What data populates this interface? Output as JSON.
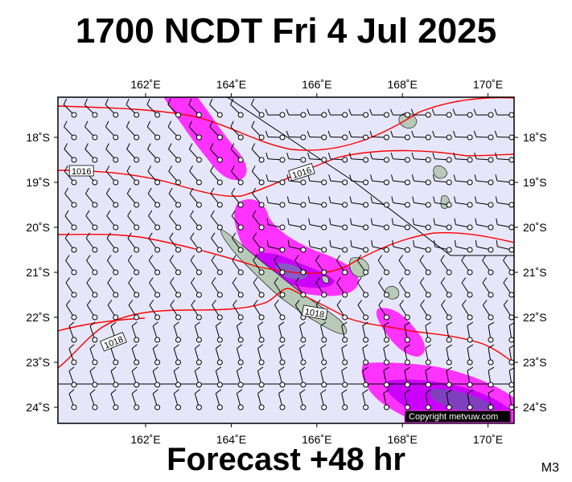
{
  "title": "1700 NCDT Fri 4 Jul 2025",
  "subtitle": "Forecast +48 hr",
  "model_id": "M3",
  "copyright": "Copyright metvuw.com",
  "axes": {
    "x_ticks": [
      {
        "lon": 162,
        "label": "162˚E"
      },
      {
        "lon": 164,
        "label": "164˚E"
      },
      {
        "lon": 166,
        "label": "166˚E"
      },
      {
        "lon": 168,
        "label": "168˚E"
      },
      {
        "lon": 170,
        "label": "170˚E"
      }
    ],
    "y_ticks": [
      {
        "lat": -18,
        "label": "18˚S"
      },
      {
        "lat": -19,
        "label": "19˚S"
      },
      {
        "lat": -20,
        "label": "20˚S"
      },
      {
        "lat": -21,
        "label": "21˚S"
      },
      {
        "lat": -22,
        "label": "22˚S"
      },
      {
        "lat": -23,
        "label": "23˚S"
      },
      {
        "lat": -24,
        "label": "24˚S"
      }
    ]
  },
  "isobar_labels": [
    {
      "text": "1016",
      "lon": 160.5,
      "lat": -18.75
    },
    {
      "text": "1016",
      "lon": 165.65,
      "lat": -18.78
    },
    {
      "text": "1018",
      "lon": 165.95,
      "lat": -21.9
    },
    {
      "text": "1018",
      "lon": 161.25,
      "lat": -22.55
    }
  ],
  "colors": {
    "sea": "#e6e6fa",
    "land": "#b8c9b8",
    "isobar": "#ff0000",
    "rain_light": "#ff33ff",
    "rain_medium": "#cc00ff",
    "rain_heavy": "#7f3fbf",
    "frame": "#000000"
  }
}
